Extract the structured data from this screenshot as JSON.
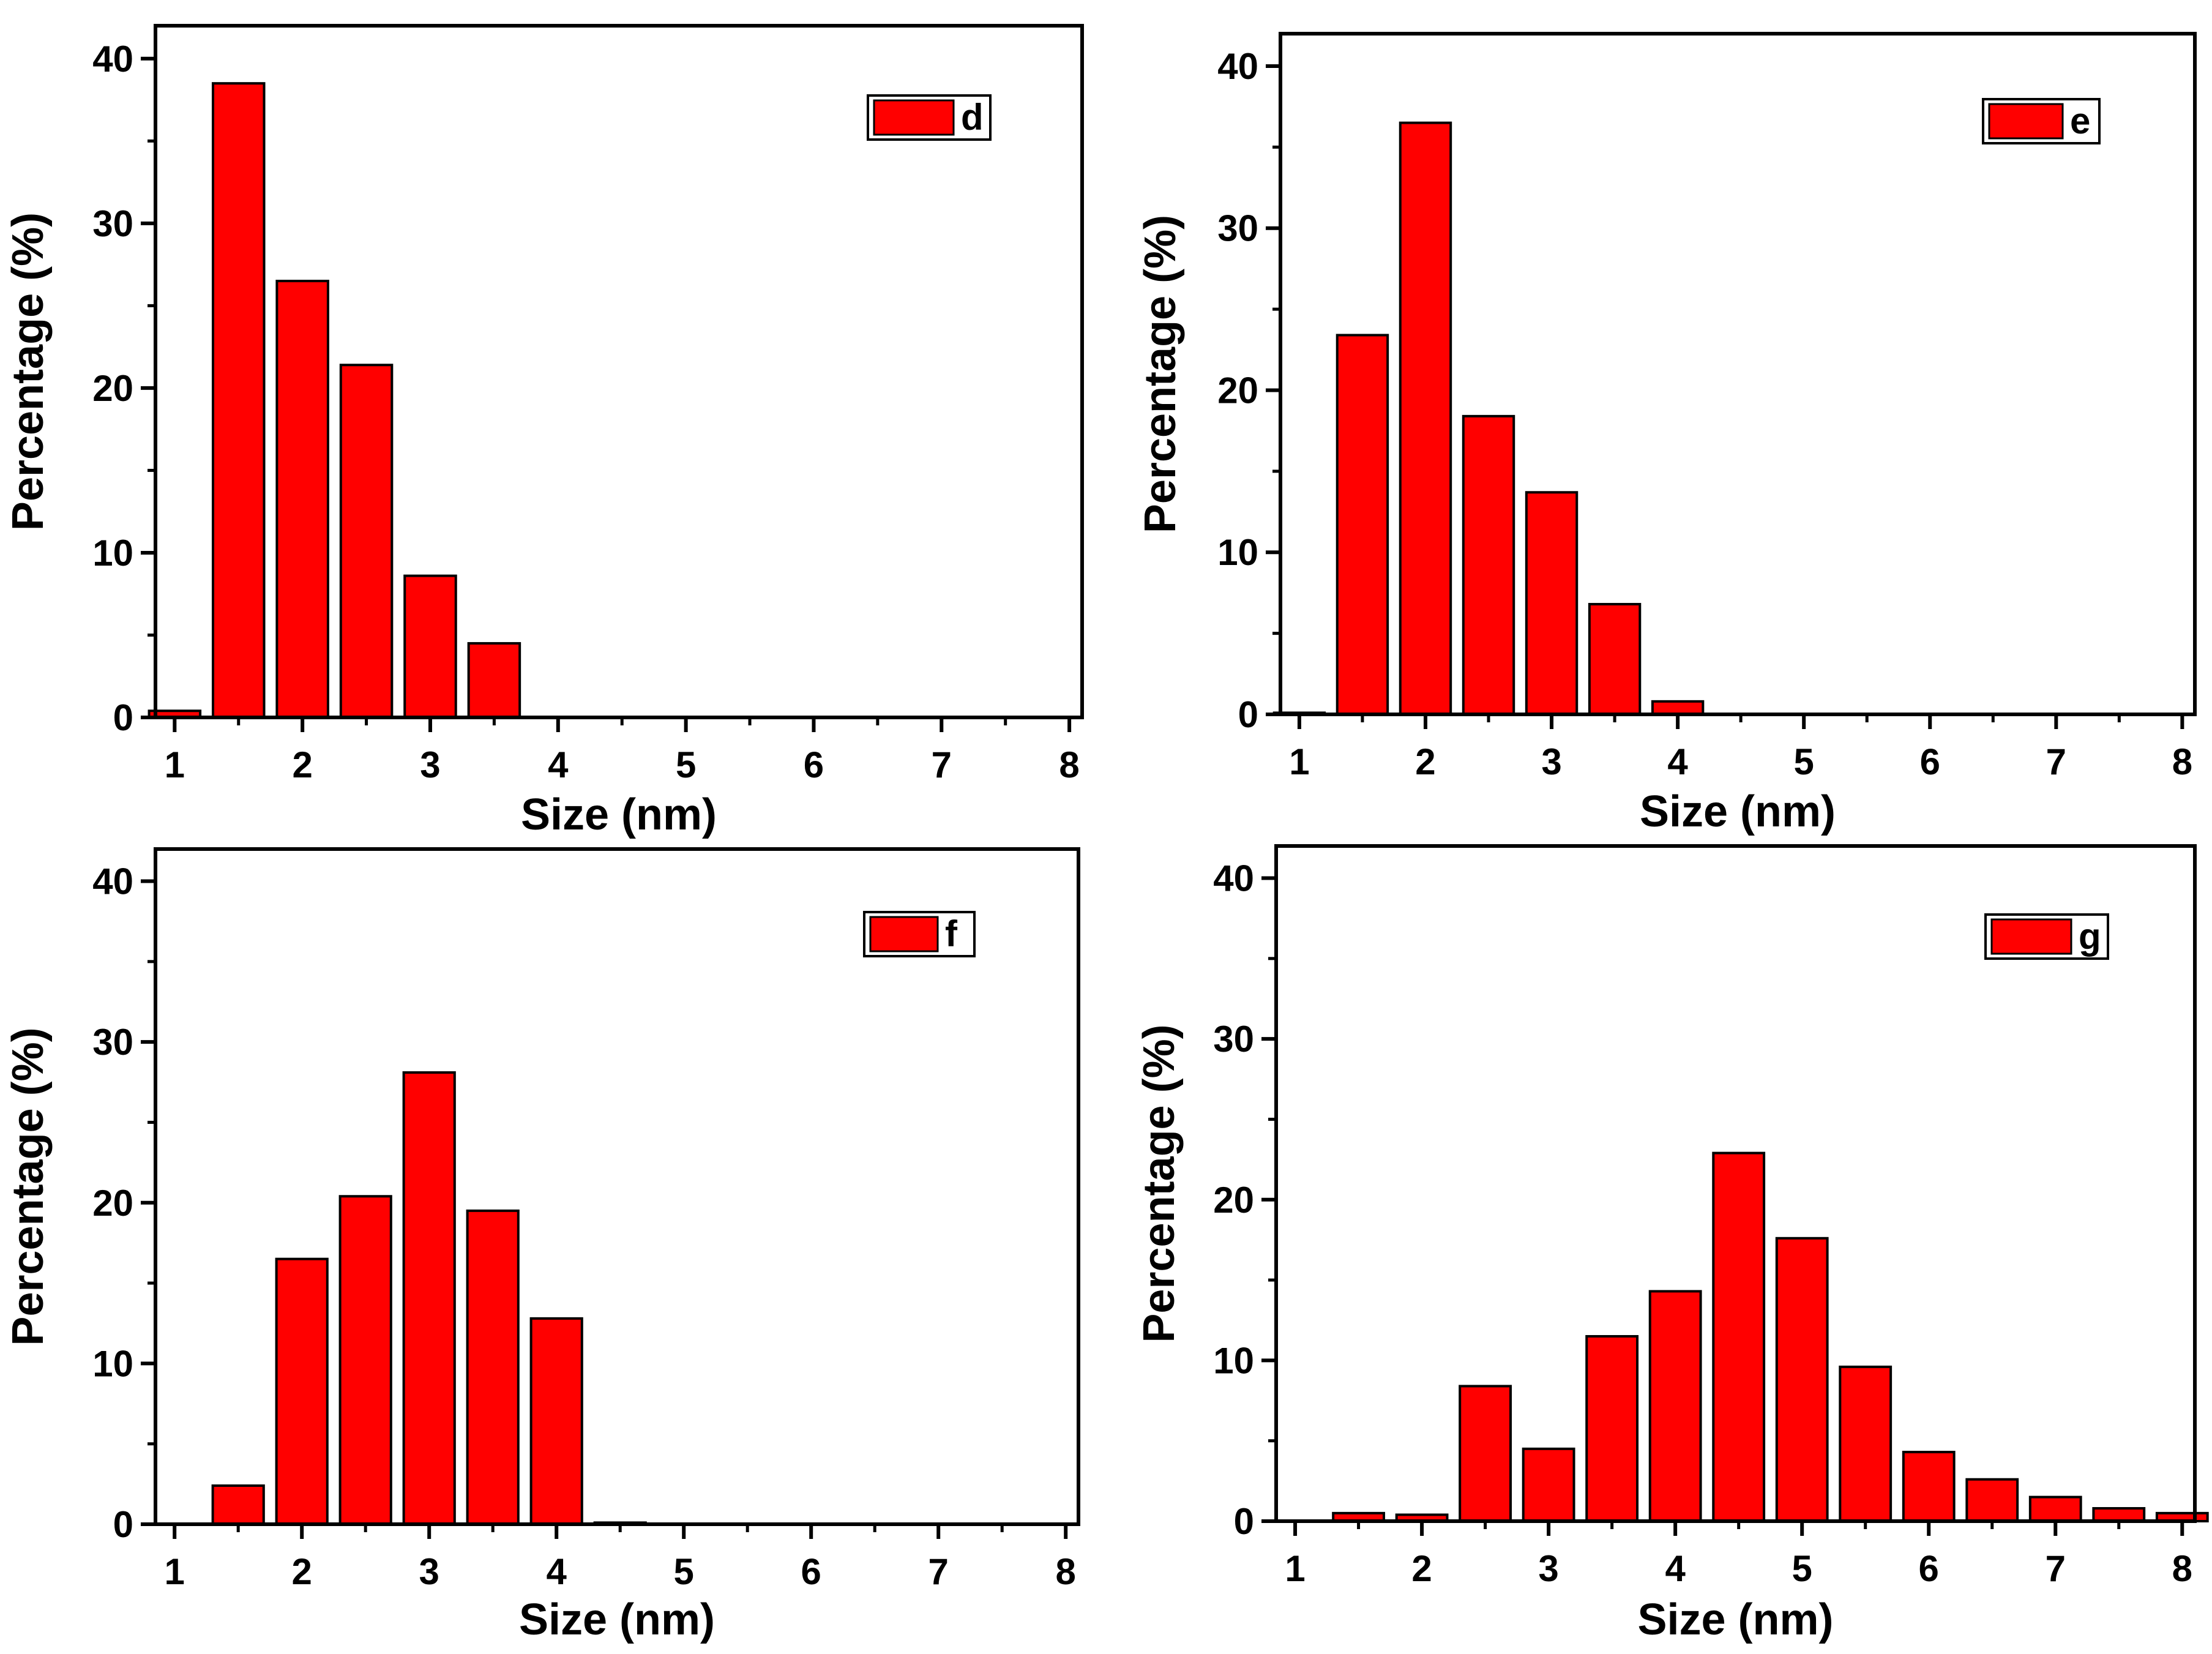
{
  "figure": {
    "panel_count": 4
  },
  "chart_data": [
    {
      "type": "bar",
      "legend": {
        "label": "d",
        "placement": "top-right",
        "color": "#ff0000"
      },
      "xlabel": "Size (nm)",
      "ylabel": "Percentage (%)",
      "xlim": [
        0.85,
        8.1
      ],
      "ylim": [
        0,
        42
      ],
      "xticks": [
        "1",
        "2",
        "3",
        "4",
        "5",
        "6",
        "7",
        "8"
      ],
      "yticks": [
        "0",
        "10",
        "20",
        "30",
        "40"
      ],
      "bar_width": 0.4,
      "x": [
        1.0,
        1.5,
        2.0,
        2.5,
        3.0,
        3.5,
        4.0,
        4.5,
        5.0,
        5.5,
        6.0,
        6.5,
        7.0,
        7.5,
        8.0
      ],
      "values": [
        0.4,
        38.5,
        26.5,
        21.4,
        8.6,
        4.5,
        0,
        0,
        0,
        0,
        0,
        0,
        0,
        0,
        0
      ],
      "bar_color": "#ff0000",
      "edge_color": "#000000"
    },
    {
      "type": "bar",
      "legend": {
        "label": "e",
        "placement": "top-right",
        "color": "#ff0000"
      },
      "xlabel": "Size (nm)",
      "ylabel": "Percentage (%)",
      "xlim": [
        0.85,
        8.1
      ],
      "ylim": [
        0,
        42
      ],
      "xticks": [
        "1",
        "2",
        "3",
        "4",
        "5",
        "6",
        "7",
        "8"
      ],
      "yticks": [
        "0",
        "10",
        "20",
        "30",
        "40"
      ],
      "bar_width": 0.4,
      "x": [
        1.0,
        1.5,
        2.0,
        2.5,
        3.0,
        3.5,
        4.0,
        4.5,
        5.0,
        5.5,
        6.0,
        6.5,
        7.0,
        7.5,
        8.0
      ],
      "values": [
        0.1,
        23.4,
        36.5,
        18.4,
        13.7,
        6.8,
        0.8,
        0,
        0,
        0,
        0,
        0,
        0,
        0,
        0
      ],
      "bar_color": "#ff0000",
      "edge_color": "#000000"
    },
    {
      "type": "bar",
      "legend": {
        "label": "f",
        "placement": "top-right",
        "color": "#ff0000"
      },
      "xlabel": "Size (nm)",
      "ylabel": "Percentage (%)",
      "xlim": [
        0.85,
        8.1
      ],
      "ylim": [
        0,
        42
      ],
      "xticks": [
        "1",
        "2",
        "3",
        "4",
        "5",
        "6",
        "7",
        "8"
      ],
      "yticks": [
        "0",
        "10",
        "20",
        "30",
        "40"
      ],
      "bar_width": 0.4,
      "x": [
        1.0,
        1.5,
        2.0,
        2.5,
        3.0,
        3.5,
        4.0,
        4.5,
        5.0,
        5.5,
        6.0,
        6.5,
        7.0,
        7.5,
        8.0
      ],
      "values": [
        0,
        2.4,
        16.5,
        20.4,
        28.1,
        19.5,
        12.8,
        0.1,
        0,
        0,
        0,
        0,
        0,
        0,
        0
      ],
      "bar_color": "#ff0000",
      "edge_color": "#000000"
    },
    {
      "type": "bar",
      "legend": {
        "label": "g",
        "placement": "top-right",
        "color": "#ff0000"
      },
      "xlabel": "Size (nm)",
      "ylabel": "Percentage (%)",
      "xlim": [
        0.85,
        8.1
      ],
      "ylim": [
        0,
        42
      ],
      "xticks": [
        "1",
        "2",
        "3",
        "4",
        "5",
        "6",
        "7",
        "8"
      ],
      "yticks": [
        "0",
        "10",
        "20",
        "30",
        "40"
      ],
      "bar_width": 0.4,
      "x": [
        1.0,
        1.5,
        2.0,
        2.5,
        3.0,
        3.5,
        4.0,
        4.5,
        5.0,
        5.5,
        6.0,
        6.5,
        7.0,
        7.5,
        8.0
      ],
      "values": [
        0,
        0.5,
        0.4,
        8.4,
        4.5,
        11.5,
        14.3,
        22.9,
        17.6,
        9.6,
        4.3,
        2.6,
        1.5,
        0.8,
        0.5
      ],
      "bar_color": "#ff0000",
      "edge_color": "#000000"
    }
  ]
}
